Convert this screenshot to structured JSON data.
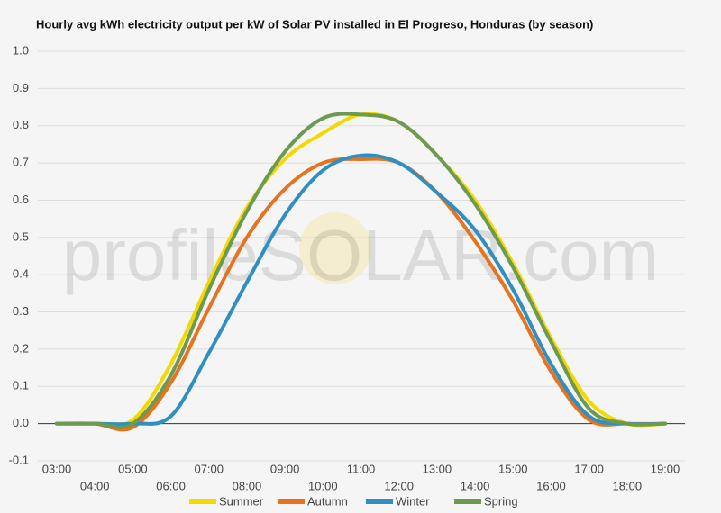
{
  "chart_data": {
    "type": "line",
    "title": "Hourly avg kWh electricity output per kW of Solar PV installed in El Progreso, Honduras (by season)",
    "watermark": "profileSOLAR.com",
    "categories": [
      "03:00",
      "04:00",
      "05:00",
      "06:00",
      "07:00",
      "08:00",
      "09:00",
      "10:00",
      "11:00",
      "12:00",
      "13:00",
      "14:00",
      "15:00",
      "16:00",
      "17:00",
      "18:00",
      "19:00"
    ],
    "series": [
      {
        "name": "Summer",
        "color": "#f5d800",
        "values": [
          0,
          0,
          0.01,
          0.16,
          0.38,
          0.58,
          0.71,
          0.78,
          0.83,
          0.81,
          0.72,
          0.6,
          0.43,
          0.23,
          0.06,
          0,
          0
        ]
      },
      {
        "name": "Autumn",
        "color": "#e5731f",
        "values": [
          0,
          0,
          -0.01,
          0.11,
          0.31,
          0.5,
          0.63,
          0.7,
          0.71,
          0.7,
          0.62,
          0.49,
          0.33,
          0.14,
          0.01,
          0,
          0
        ]
      },
      {
        "name": "Winter",
        "color": "#2f8fc0",
        "values": [
          0,
          0,
          0,
          0.02,
          0.19,
          0.38,
          0.56,
          0.68,
          0.72,
          0.7,
          0.62,
          0.52,
          0.36,
          0.16,
          0.02,
          0,
          0
        ]
      },
      {
        "name": "Spring",
        "color": "#6b9a50",
        "values": [
          0,
          0,
          0,
          0.13,
          0.36,
          0.57,
          0.73,
          0.82,
          0.83,
          0.81,
          0.72,
          0.59,
          0.42,
          0.22,
          0.04,
          0,
          0
        ]
      }
    ],
    "ylim": [
      -0.1,
      1
    ],
    "yticks": [
      -0.1,
      {
        "value": 0,
        "label": "0.0"
      },
      0.1,
      0.2,
      0.3,
      0.4,
      0.5,
      0.6,
      0.7,
      0.8,
      0.9,
      {
        "value": 1,
        "label": "1.0"
      }
    ],
    "grid": true
  }
}
